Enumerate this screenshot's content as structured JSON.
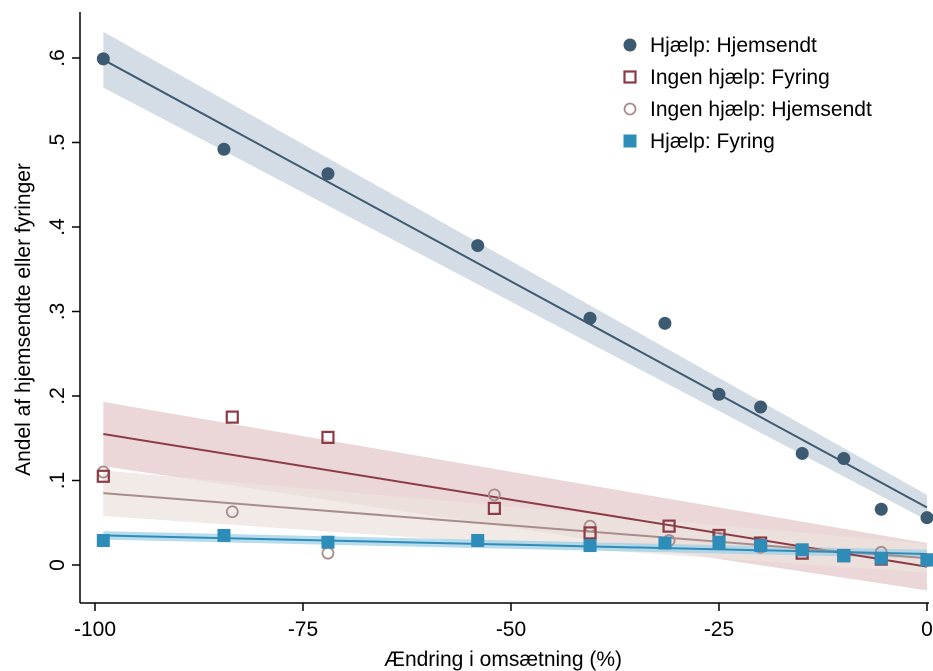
{
  "chart_data": {
    "type": "scatter",
    "xlabel": "Ændring i omsætning (%)",
    "ylabel": "Andel af hjemsendte eller fyringer",
    "xlim": [
      -101,
      0
    ],
    "ylim": [
      -0.04,
      0.64
    ],
    "xticks": [
      -100,
      -75,
      -50,
      -25,
      0
    ],
    "xtick_labels": [
      "-100",
      "-75",
      "-50",
      "-25",
      "0"
    ],
    "yticks": [
      0,
      0.1,
      0.2,
      0.3,
      0.4,
      0.5,
      0.6
    ],
    "ytick_labels": [
      "0",
      ".1",
      ".2",
      ".3",
      ".4",
      ".5",
      ".6"
    ],
    "grid": false,
    "legend_position": "top-right",
    "series": [
      {
        "name": "Hjælp: Hjemsendt",
        "marker": "filled-circle",
        "color": "#3d5a73",
        "band_color": "#c5d2dc",
        "x": [
          -99,
          -84.5,
          -72,
          -54,
          -40.5,
          -31.5,
          -25,
          -20,
          -15,
          -10,
          -5.5,
          0
        ],
        "y": [
          0.599,
          0.492,
          0.463,
          0.378,
          0.292,
          0.286,
          0.202,
          0.187,
          0.132,
          0.126,
          0.066,
          0.056
        ],
        "fit": {
          "x": [
            -99,
            0
          ],
          "y": [
            0.598,
            0.068
          ],
          "ci_halfwidth": [
            0.033,
            0.015
          ]
        }
      },
      {
        "name": "Ingen hjælp: Fyring",
        "marker": "hollow-square",
        "color": "#8c3a44",
        "band_color": "#e4c9cb",
        "x": [
          -99,
          -83.5,
          -72,
          -52,
          -40.5,
          -31,
          -25,
          -20,
          -15,
          -10,
          -5.5,
          0
        ],
        "y": [
          0.105,
          0.175,
          0.151,
          0.067,
          0.038,
          0.046,
          0.035,
          0.026,
          0.014,
          0.011,
          0.007,
          0.006
        ],
        "fit": {
          "x": [
            -99,
            0
          ],
          "y": [
            0.155,
            -0.002
          ],
          "ci_halfwidth": [
            0.038,
            0.028
          ]
        }
      },
      {
        "name": "Ingen hjælp: Hjemsendt",
        "marker": "hollow-circle",
        "color": "#a88c8c",
        "band_color": "#ece3df",
        "x": [
          -99,
          -83.5,
          -72,
          -52,
          -40.5,
          -31,
          -25,
          -20,
          -15,
          -10,
          -5.5,
          0
        ],
        "y": [
          0.11,
          0.063,
          0.014,
          0.083,
          0.046,
          0.029,
          0.032,
          0.021,
          0.018,
          0.011,
          0.015,
          0.005
        ],
        "fit": {
          "x": [
            -99,
            0
          ],
          "y": [
            0.085,
            0.008
          ],
          "ci_halfwidth": [
            0.027,
            0.017
          ]
        }
      },
      {
        "name": "Hjælp: Fyring",
        "marker": "filled-square",
        "color": "#2e8cb8",
        "band_color": "#9fd0e6",
        "x": [
          -99,
          -84.5,
          -72,
          -54,
          -40.5,
          -31.5,
          -25,
          -20,
          -15,
          -10,
          -5.5,
          0
        ],
        "y": [
          0.029,
          0.035,
          0.027,
          0.029,
          0.023,
          0.026,
          0.027,
          0.023,
          0.018,
          0.011,
          0.008,
          0.006
        ],
        "fit": {
          "x": [
            -99,
            0
          ],
          "y": [
            0.035,
            0.013
          ],
          "ci_halfwidth": [
            0.005,
            0.005
          ]
        }
      }
    ]
  }
}
